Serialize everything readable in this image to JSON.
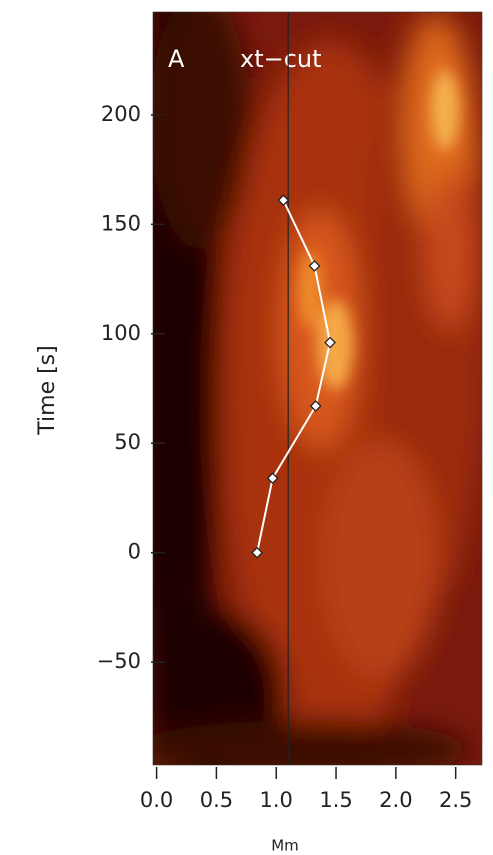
{
  "chart_data": {
    "type": "scatter",
    "panel_label": "A",
    "annotation": "xt−cut",
    "xlabel": "Mm",
    "ylabel": "Time [s]",
    "x": [
      0.84,
      0.97,
      1.33,
      1.45,
      1.32,
      1.06
    ],
    "values": [
      0,
      34,
      67,
      96,
      131,
      161
    ],
    "cut_line_x": 1.1,
    "xlim": [
      -0.03,
      2.72
    ],
    "ylim": [
      -97,
      247
    ],
    "xticks": [
      {
        "value": 0,
        "label": "0.0"
      },
      0.5,
      {
        "value": 1,
        "label": "1.0"
      },
      1.5,
      {
        "value": 2,
        "label": "2.0"
      },
      2.5
    ],
    "yticks": [
      {
        "value": -50,
        "label": "−50"
      },
      0,
      50,
      100,
      150,
      200
    ]
  }
}
